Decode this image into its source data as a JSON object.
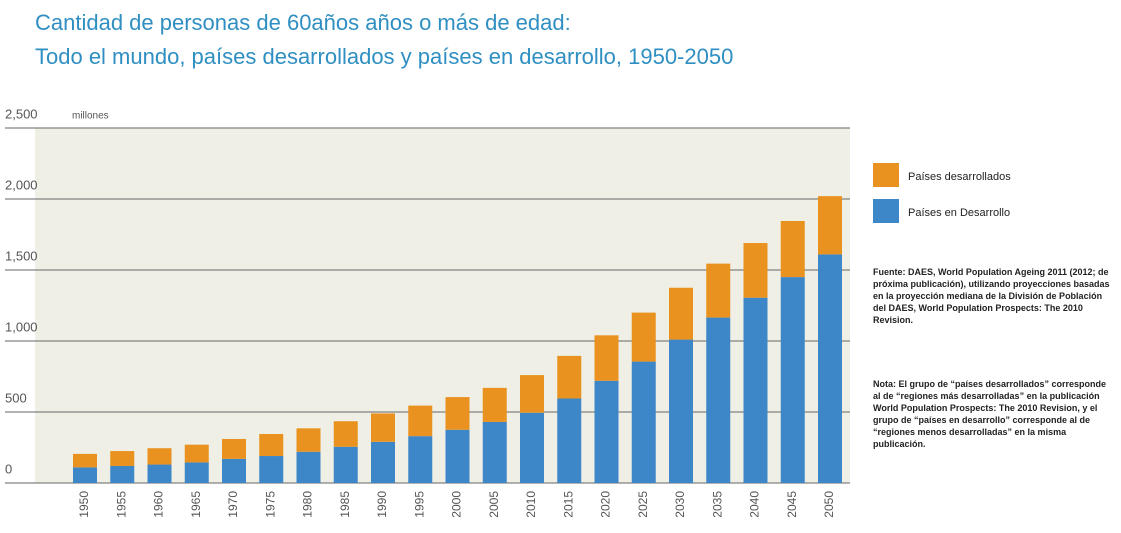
{
  "chart_data": {
    "type": "stacked_bar",
    "title": "Cantidad de personas de 60años años o más de edad:",
    "subtitle": "Todo el mundo, países desarrollados y países en desarrollo, 1950-2050",
    "y_unit": "millones",
    "categories": [
      "1950",
      "1955",
      "1960",
      "1965",
      "1970",
      "1975",
      "1980",
      "1985",
      "1990",
      "1995",
      "2000",
      "2005",
      "2010",
      "2015",
      "2020",
      "2025",
      "2030",
      "2035",
      "2040",
      "2045",
      "2050"
    ],
    "series": [
      {
        "name": "Países en Desarrollo",
        "color": "#3d87c9",
        "values": [
          110,
          120,
          130,
          145,
          170,
          190,
          220,
          255,
          290,
          330,
          375,
          430,
          495,
          595,
          720,
          855,
          1010,
          1165,
          1305,
          1450,
          1610
        ]
      },
      {
        "name": "Países desarrollados",
        "color": "#ea921f",
        "values": [
          95,
          105,
          115,
          125,
          140,
          155,
          165,
          180,
          200,
          215,
          230,
          240,
          265,
          300,
          320,
          345,
          365,
          380,
          385,
          395,
          410
        ]
      }
    ],
    "ylim": [
      0,
      2500
    ],
    "yticks": [
      0,
      500,
      {
        "value": 1000,
        "label": "1,000"
      },
      {
        "value": 1500,
        "label": "1,500"
      },
      {
        "value": 2000,
        "label": "2,000"
      },
      {
        "value": 2500,
        "label": "2,500"
      }
    ],
    "grid": true,
    "legend": "right",
    "source": "Fuente: DAES, World Population Ageing 2011 (2012; de próxima publicación), utilizando proyecciones basadas en la proyección mediana de la División de Población del DAES, World Population Prospects: The 2010 Revision.",
    "note": "Nota: El grupo de “países desarrollados” corresponde al de “regiones más desarrolladas” en la publicación World Population Prospects: The 2010 Revision, y el grupo de “países en desarrollo” corresponde al de “regiones menos desarrolladas” en la misma publicación."
  }
}
